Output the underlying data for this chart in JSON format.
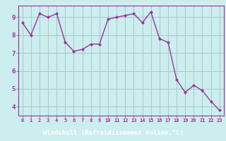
{
  "x": [
    0,
    1,
    2,
    3,
    4,
    5,
    6,
    7,
    8,
    9,
    10,
    11,
    12,
    13,
    14,
    15,
    16,
    17,
    18,
    19,
    20,
    21,
    22,
    23
  ],
  "y": [
    8.7,
    8.0,
    9.2,
    9.0,
    9.2,
    7.6,
    7.1,
    7.2,
    7.5,
    7.5,
    8.9,
    9.0,
    9.1,
    9.2,
    8.7,
    9.3,
    7.8,
    7.6,
    5.5,
    4.8,
    5.2,
    4.9,
    4.3,
    3.8
  ],
  "line_color": "#993399",
  "marker_color": "#993399",
  "bg_color": "#cceeee",
  "grid_color": "#aacccc",
  "xlabel": "Windchill (Refroidissement éolien,°C)",
  "xlabel_color": "#ffffff",
  "xlabel_bg": "#7733aa",
  "tick_color": "#993399",
  "ylim": [
    3.5,
    9.65
  ],
  "yticks": [
    4,
    5,
    6,
    7,
    8,
    9
  ],
  "xticks": [
    0,
    1,
    2,
    3,
    4,
    5,
    6,
    7,
    8,
    9,
    10,
    11,
    12,
    13,
    14,
    15,
    16,
    17,
    18,
    19,
    20,
    21,
    22,
    23
  ]
}
